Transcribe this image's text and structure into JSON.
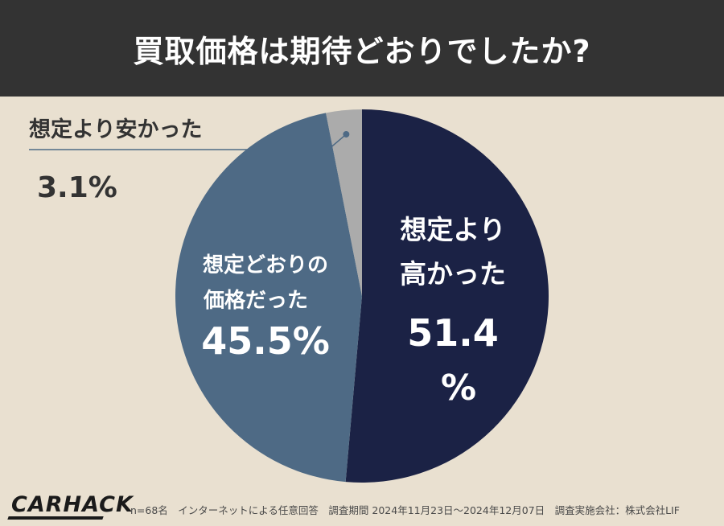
{
  "header": {
    "title": "買取価格は期待どおりでしたか?"
  },
  "chart_data": {
    "type": "pie",
    "title": "買取価格は期待どおりでしたか?",
    "slices": [
      {
        "label": "想定より高かった",
        "label_lines": [
          "想定より",
          "高かった"
        ],
        "value": 51.4,
        "value_text": "51.4",
        "unit_text": "%",
        "color": "#1b2245"
      },
      {
        "label": "想定どおりの価格だった",
        "label_lines": [
          "想定どおりの",
          "価格だった"
        ],
        "value": 45.5,
        "value_text": "45.5%",
        "color": "#4e6a85"
      },
      {
        "label": "想定より安かった",
        "label_lines": [
          "想定より安かった"
        ],
        "value": 3.1,
        "value_text": "3.1%",
        "color": "#ababab"
      }
    ]
  },
  "footer": {
    "brand": "CARHACK",
    "note": "n=68名　インターネットによる任意回答　調査期間 2024年11月23日〜2024年12月07日　調査実施会社：株式会社LIF"
  },
  "colors": {
    "background": "#e9e0d0",
    "header_bg": "#333333",
    "header_text": "#ffffff",
    "text_dark": "#333333",
    "leader_line": "#4e6a85"
  }
}
